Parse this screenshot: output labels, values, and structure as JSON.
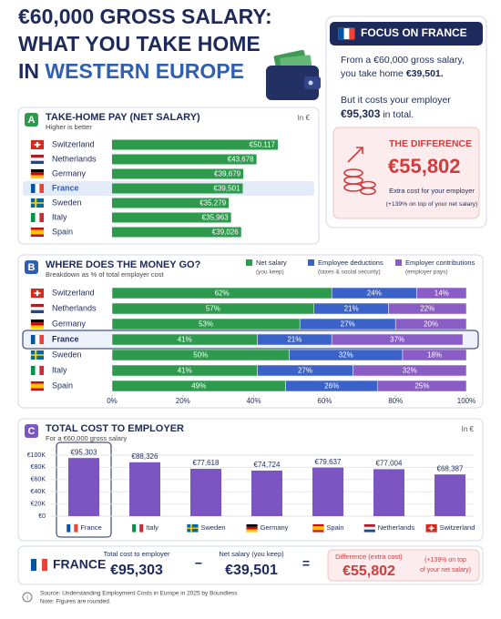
{
  "header": {
    "line1": "€60,000 GROSS SALARY:",
    "line2": "WHAT YOU TAKE HOME",
    "line3_prefix": "IN",
    "line3_highlight": "WESTERN EUROPE"
  },
  "focus": {
    "title": "FOCUS ON FRANCE",
    "line1": "From a €60,000 gross salary,",
    "line2_text": "you take home",
    "line2_amount": "€39,501.",
    "line3": "But it costs your employer",
    "line4_amount": "€95,303",
    "line4_text": "in total.",
    "difference_title": "THE DIFFERENCE",
    "difference_amount": "€55,802",
    "difference_note1": "Extra cost for your employer",
    "difference_note2": "(+139% on top of your net salary)"
  },
  "chart_data": [
    {
      "type": "hbar",
      "badge": "A",
      "title": "TAKE-HOME PAY (NET SALARY)",
      "subtitle": "Higher is better",
      "unit": "In €",
      "categories": [
        "Switzerland",
        "Netherlands",
        "Germany",
        "France",
        "Sweden",
        "Italy",
        "Spain"
      ],
      "values": [
        50117,
        43678,
        39679,
        39501,
        35279,
        35963,
        39026
      ],
      "value_labels": [
        "€50,117",
        "€43,678",
        "€39,679",
        "€39,501",
        "€35,279",
        "€35,963",
        "€39,026"
      ],
      "color": "#2e9a4e"
    },
    {
      "type": "stacked_hbar",
      "badge": "B",
      "title": "WHERE DOES THE MONEY GO?",
      "subtitle": "Breakdown as % of total employer cost",
      "categories": [
        "Switzerland",
        "Netherlands",
        "Germany",
        "France",
        "Sweden",
        "Italy",
        "Spain"
      ],
      "series": [
        {
          "name": "Net salary",
          "note": "(you keep)",
          "color": "#2e9a4e",
          "values": [
            62,
            57,
            53,
            41,
            50,
            41,
            49
          ],
          "value_labels": [
            "62%",
            "57%",
            "53%",
            "41%",
            "50%",
            "41%",
            "49%"
          ]
        },
        {
          "name": "Employee deductions",
          "note": "(taxes & social security)",
          "color": "#3a62c9",
          "values": [
            24,
            21,
            27,
            21,
            32,
            27,
            26
          ],
          "value_labels": [
            "24%",
            "21%",
            "27%",
            "21%",
            "32%",
            "27%",
            "26%"
          ]
        },
        {
          "name": "Employer contributions",
          "note": "(employer pays)",
          "color": "#8a5cc6",
          "values": [
            14,
            22,
            20,
            37,
            18,
            32,
            25
          ],
          "value_labels": [
            "14%",
            "22%",
            "20%",
            "37%",
            "18%",
            "32%",
            "25%"
          ]
        }
      ],
      "xlim": [
        0,
        100
      ],
      "xticks": [
        {
          "value": 0,
          "label": "0%"
        },
        {
          "value": 20,
          "label": "20%"
        },
        {
          "value": 40,
          "label": "40%"
        },
        {
          "value": 60,
          "label": "60%"
        },
        {
          "value": 80,
          "label": "80%"
        },
        {
          "value": 100,
          "label": "100%"
        }
      ]
    },
    {
      "type": "bar",
      "badge": "C",
      "title": "TOTAL COST TO EMPLOYER",
      "subtitle": "For a €60,000 gross salary",
      "unit": "In €",
      "categories": [
        "France",
        "Italy",
        "Sweden",
        "Germany",
        "Spain",
        "Netherlands",
        "Switzerland"
      ],
      "values": [
        95303,
        88326,
        77618,
        74724,
        79637,
        77004,
        68387
      ],
      "value_labels": [
        "€95,303",
        "€88,326",
        "€77,618",
        "€74,724",
        "€79,637",
        "€77,004",
        "€68,387"
      ],
      "color": "#7b55c2",
      "ylim": [
        0,
        100000
      ],
      "yticks": [
        {
          "value": 100000,
          "label": "€100K"
        },
        {
          "value": 80000,
          "label": "€80K"
        },
        {
          "value": 60000,
          "label": "€60K"
        },
        {
          "value": 40000,
          "label": "€40K"
        },
        {
          "value": 20000,
          "label": "€20K"
        },
        {
          "value": 0,
          "label": "€0"
        }
      ],
      "grid": true
    }
  ],
  "comparison": {
    "country": "FRANCE",
    "total_label": "Total cost to employer",
    "total_amount": "€95,303",
    "minus": "−",
    "net_label": "Net salary (you keep)",
    "net_amount": "€39,501",
    "equals": "=",
    "difference_label": "Difference (extra cost)",
    "difference_amount": "€55,802",
    "difference_note1": "(+139% on top",
    "difference_note2": "of your net salary)"
  },
  "footer": {
    "source": "Source: Understanding Employment Costs in Europe in 2025 by Boundless",
    "note": "Note: Figures are rounded."
  }
}
